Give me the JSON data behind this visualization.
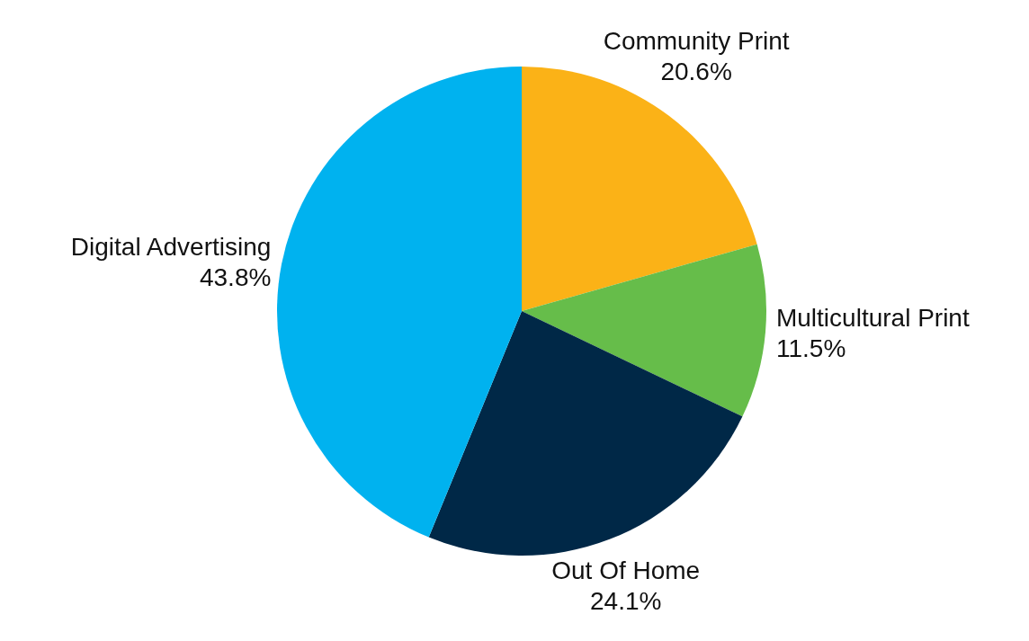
{
  "chart_data": {
    "type": "pie",
    "categories": [
      "Community Print",
      "Multicultural Print",
      "Out Of Home",
      "Digital Advertising"
    ],
    "values": [
      20.6,
      11.5,
      24.1,
      43.8
    ],
    "value_labels": [
      "20.6%",
      "11.5%",
      "24.1%",
      "43.8%"
    ],
    "colors": [
      "#fbb217",
      "#66bd4a",
      "#002847",
      "#00b2ef"
    ],
    "legend": false
  }
}
